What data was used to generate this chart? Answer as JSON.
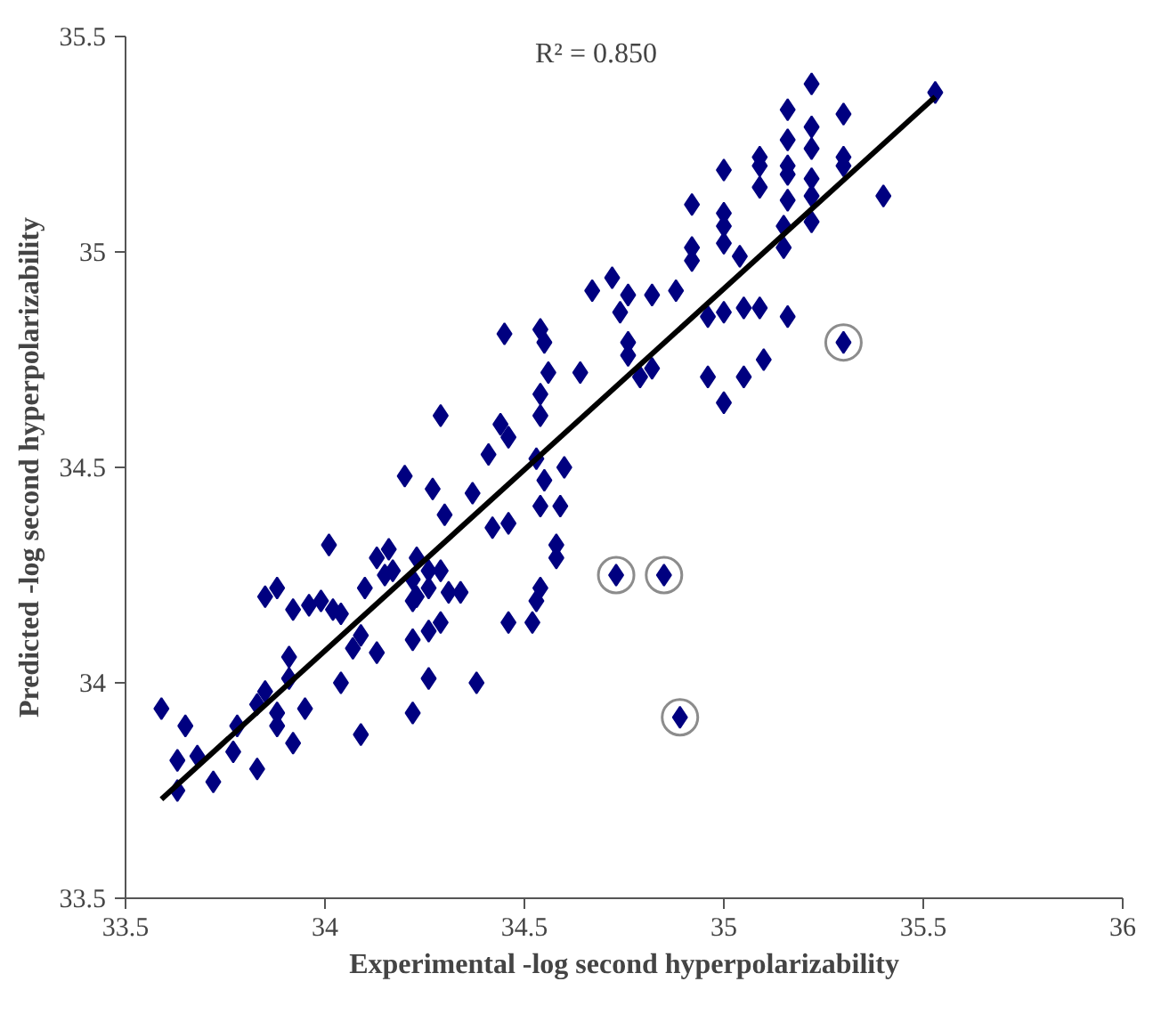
{
  "chart_data": {
    "type": "scatter",
    "xlabel": "Experimental -log second hyperpolarizability",
    "ylabel": "Predicted -log second hyperpolarizability",
    "annotations": [
      "R² = 0.850"
    ],
    "xlim": [
      33.5,
      36
    ],
    "ylim": [
      33.5,
      35.5
    ],
    "xticks": [
      33.5,
      34,
      34.5,
      35,
      35.5,
      36
    ],
    "yticks": [
      33.5,
      34,
      34.5,
      35,
      35.5
    ],
    "grid": false,
    "series": [
      {
        "marker": "diamond",
        "color": "#000080",
        "x": [
          33.59,
          33.65,
          33.63,
          33.68,
          33.63,
          33.72,
          33.77,
          33.83,
          33.78,
          33.83,
          33.85,
          33.88,
          33.88,
          33.92,
          33.95,
          33.91,
          33.91,
          33.85,
          33.88,
          33.92,
          33.96,
          33.99,
          34.02,
          34.04,
          34.01,
          34.07,
          34.04,
          34.09,
          34.09,
          34.13,
          34.1,
          34.13,
          34.16,
          34.15,
          34.17,
          34.22,
          34.23,
          34.26,
          34.22,
          34.23,
          34.26,
          34.29,
          34.31,
          34.34,
          34.26,
          34.29,
          34.22,
          34.26,
          34.22,
          34.38,
          34.46,
          34.52,
          34.53,
          34.54,
          34.58,
          34.58,
          34.2,
          34.27,
          34.3,
          34.37,
          34.42,
          34.46,
          34.41,
          34.55,
          34.6,
          34.54,
          34.59,
          34.45,
          34.54,
          34.55,
          34.56,
          34.64,
          34.54,
          34.54,
          34.29,
          34.44,
          34.46,
          34.53,
          34.67,
          34.72,
          34.76,
          34.74,
          34.76,
          34.76,
          35.22,
          35.16,
          35.3,
          35.22,
          35.16,
          35.22,
          35.3,
          35.3,
          35.09,
          35.09,
          35.16,
          35.16,
          35.22,
          35.0,
          35.09,
          35.16,
          35.22,
          35.4,
          35.53,
          34.92,
          35.0,
          35.0,
          35.0,
          35.15,
          35.22,
          35.15,
          34.92,
          34.92,
          35.04,
          34.82,
          34.88,
          34.79,
          34.82,
          34.96,
          35.0,
          35.05,
          35.09,
          35.16,
          34.96,
          35.05,
          35.1,
          35.0,
          35.3,
          34.73,
          34.85,
          34.89
        ],
        "values": [
          33.94,
          33.9,
          33.82,
          33.83,
          33.75,
          33.77,
          33.84,
          33.8,
          33.9,
          33.95,
          33.98,
          33.93,
          33.9,
          33.86,
          33.94,
          34.01,
          34.06,
          34.2,
          34.22,
          34.17,
          34.18,
          34.19,
          34.17,
          34.16,
          34.32,
          34.08,
          34.0,
          33.88,
          34.11,
          34.07,
          34.22,
          34.29,
          34.31,
          34.25,
          34.26,
          34.24,
          34.29,
          34.26,
          34.19,
          34.2,
          34.22,
          34.26,
          34.21,
          34.21,
          34.12,
          34.14,
          34.1,
          34.01,
          33.93,
          34.0,
          34.14,
          34.14,
          34.19,
          34.22,
          34.29,
          34.32,
          34.48,
          34.45,
          34.39,
          34.44,
          34.36,
          34.37,
          34.53,
          34.47,
          34.5,
          34.41,
          34.41,
          34.81,
          34.82,
          34.79,
          34.72,
          34.72,
          34.67,
          34.62,
          34.62,
          34.6,
          34.57,
          34.52,
          34.91,
          34.94,
          34.9,
          34.86,
          34.79,
          34.76,
          35.39,
          35.33,
          35.32,
          35.29,
          35.26,
          35.24,
          35.22,
          35.2,
          35.22,
          35.2,
          35.2,
          35.18,
          35.17,
          35.19,
          35.15,
          35.12,
          35.13,
          35.13,
          35.37,
          35.11,
          35.09,
          35.06,
          35.02,
          35.06,
          35.07,
          35.01,
          35.01,
          34.98,
          34.99,
          34.9,
          34.91,
          34.71,
          34.73,
          34.85,
          34.86,
          34.87,
          34.87,
          34.85,
          34.71,
          34.71,
          34.75,
          34.65,
          34.79,
          34.25,
          34.25,
          33.92
        ]
      },
      {
        "marker": "circle",
        "color": "#8c8c8c",
        "x": [
          34.73,
          34.85,
          34.89,
          35.3
        ],
        "values": [
          34.25,
          34.25,
          33.92,
          34.79
        ]
      },
      {
        "type": "line",
        "color": "#000000",
        "line_style": "solid",
        "x": [
          33.59,
          35.53
        ],
        "values": [
          33.73,
          35.36
        ]
      }
    ]
  }
}
